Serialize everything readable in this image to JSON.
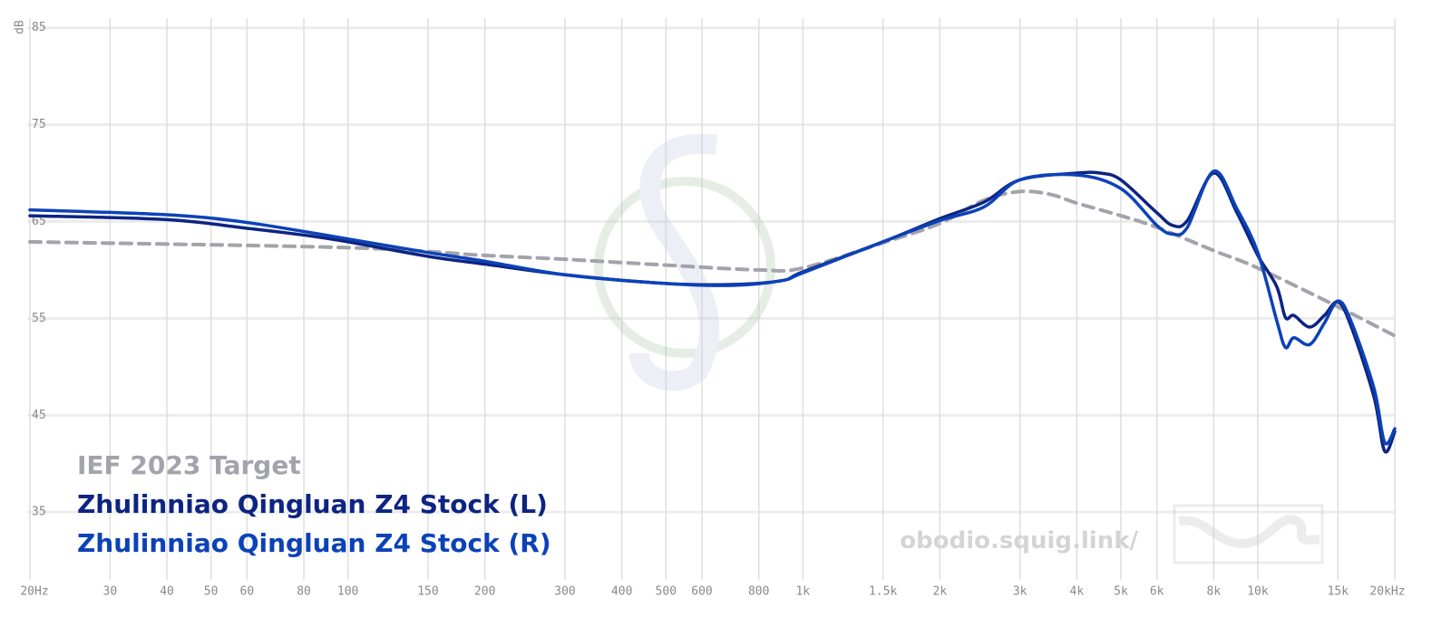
{
  "chart_data": {
    "type": "line",
    "y_label": "dB",
    "log_x": true,
    "grid": true,
    "xlim": [
      20,
      20000
    ],
    "ylim": [
      28,
      86
    ],
    "yticks": [
      35,
      45,
      55,
      65,
      75,
      85
    ],
    "xticks": [
      {
        "value": 20,
        "label": "20Hz"
      },
      30,
      40,
      50,
      60,
      80,
      100,
      150,
      200,
      300,
      400,
      500,
      600,
      800,
      {
        "value": 1000,
        "label": "1k"
      },
      {
        "value": 1500,
        "label": "1.5k"
      },
      {
        "value": 2000,
        "label": "2k"
      },
      {
        "value": 3000,
        "label": "3k"
      },
      {
        "value": 4000,
        "label": "4k"
      },
      {
        "value": 5000,
        "label": "5k"
      },
      {
        "value": 6000,
        "label": "6k"
      },
      {
        "value": 8000,
        "label": "8k"
      },
      {
        "value": 10000,
        "label": "10k"
      },
      {
        "value": 15000,
        "label": "15k"
      },
      {
        "value": 20000,
        "label": "20kHz"
      }
    ],
    "watermark": "obodio.squig.link/",
    "legend": "bottom-left",
    "series": [
      {
        "name": "IEF 2023 Target",
        "color": "#a3a3ab",
        "dashed": true,
        "x": [
          20,
          100,
          200,
          300,
          500,
          800,
          1000,
          1500,
          2000,
          2500,
          3000,
          3500,
          4000,
          5000,
          6000,
          8000,
          10000,
          15000,
          20000
        ],
        "values": [
          62.9,
          62.3,
          61.5,
          61.1,
          60.5,
          60.0,
          60.2,
          62.8,
          64.8,
          67.2,
          68.1,
          67.8,
          66.9,
          65.6,
          64.4,
          62.0,
          60.2,
          56.2,
          53.2
        ]
      },
      {
        "name": "Zhulinniao Qingluan Z4 Stock (L)",
        "color": "#0d2482",
        "dashed": false,
        "x": [
          20,
          40,
          60,
          80,
          100,
          150,
          200,
          300,
          500,
          700,
          900,
          1000,
          1500,
          2000,
          2500,
          3000,
          4000,
          4500,
          5000,
          6000,
          6500,
          7000,
          8000,
          9000,
          10000,
          11000,
          11500,
          12000,
          13000,
          14000,
          15000,
          16000,
          18000,
          19000,
          20000
        ],
        "values": [
          65.6,
          65.2,
          64.3,
          63.6,
          62.9,
          61.4,
          60.6,
          59.5,
          58.6,
          58.5,
          58.9,
          59.8,
          62.9,
          65.3,
          67.0,
          69.3,
          70.0,
          70.0,
          69.3,
          65.9,
          64.6,
          65.1,
          70.0,
          65.9,
          61.5,
          58.3,
          55.1,
          55.3,
          54.1,
          55.3,
          56.7,
          54.3,
          46.9,
          41.3,
          43.3
        ]
      },
      {
        "name": "Zhulinniao Qingluan Z4 Stock (R)",
        "color": "#0c42b8",
        "dashed": false,
        "x": [
          20,
          40,
          60,
          100,
          150,
          200,
          300,
          500,
          700,
          900,
          1000,
          1500,
          2000,
          2500,
          3000,
          4000,
          5000,
          6000,
          6500,
          7000,
          8000,
          9000,
          10000,
          11000,
          11500,
          12000,
          13000,
          14000,
          15000,
          16000,
          18000,
          19000,
          20000
        ],
        "values": [
          66.2,
          65.7,
          64.9,
          63.2,
          61.8,
          60.9,
          59.5,
          58.6,
          58.4,
          58.9,
          59.7,
          62.9,
          65.1,
          66.5,
          69.3,
          69.8,
          68.4,
          64.6,
          63.7,
          64.4,
          70.2,
          66.3,
          61.8,
          54.8,
          52.0,
          53.0,
          52.3,
          54.5,
          56.8,
          54.8,
          47.8,
          42.2,
          43.6
        ]
      }
    ]
  }
}
